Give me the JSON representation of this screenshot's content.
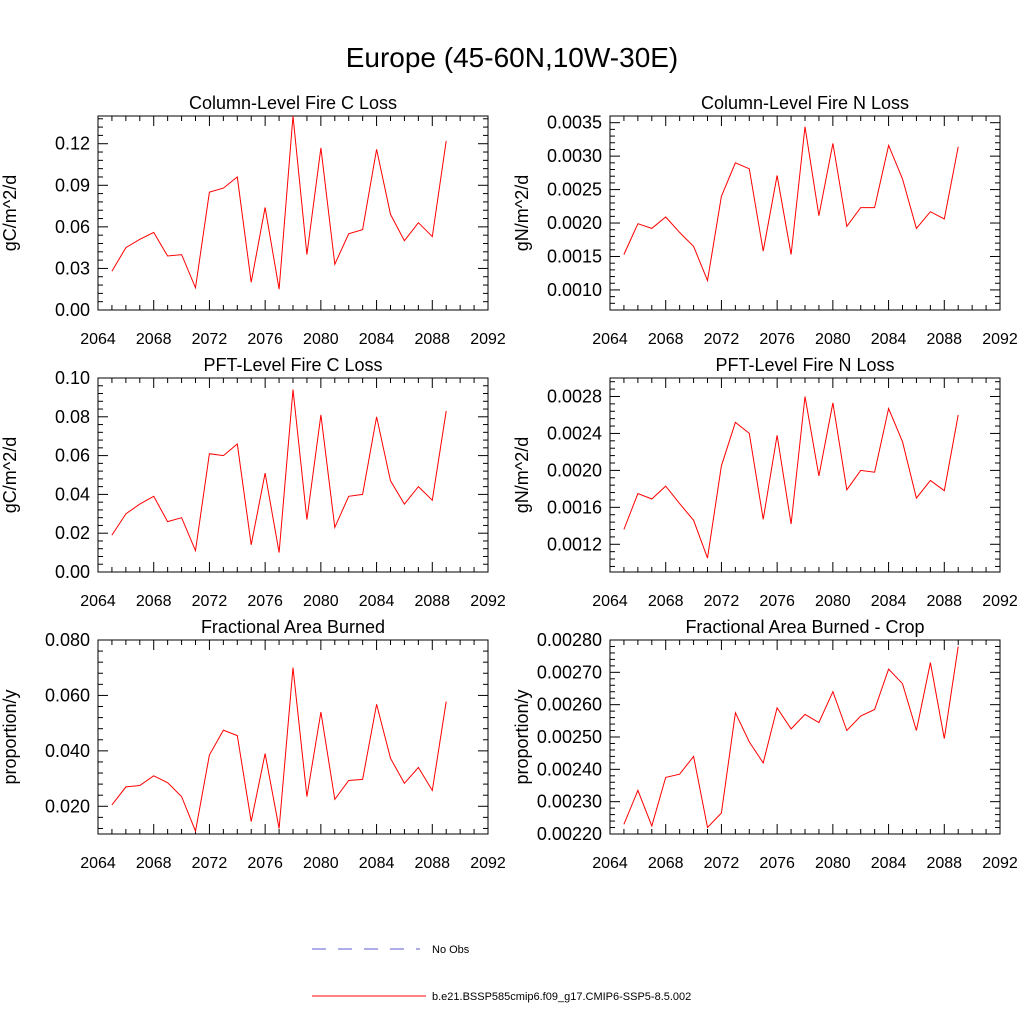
{
  "page_title": "Europe (45-60N,10W-30E)",
  "legend": {
    "obs_label": "No Obs",
    "model_label": "b.e21.BSSP585cmip6.f09_g17.CMIP6-SSP5-8.5.002",
    "obs_color": "#5b5bd6",
    "model_color": "#ff0000"
  },
  "chart_data": [
    {
      "type": "line",
      "title": "Column-Level Fire C Loss",
      "ylabel": "gC/m^2/d",
      "xlim": [
        2064,
        2092
      ],
      "ylim": [
        0,
        0.14
      ],
      "x_ticks": [
        "2064",
        "2068",
        "2072",
        "2076",
        "2080",
        "2084",
        "2088",
        "2092"
      ],
      "y_ticks": [
        "0.00",
        "0.03",
        "0.06",
        "0.09",
        "0.12"
      ],
      "x": [
        2065,
        2066,
        2067,
        2068,
        2069,
        2070,
        2071,
        2072,
        2073,
        2074,
        2075,
        2076,
        2077,
        2078,
        2079,
        2080,
        2081,
        2082,
        2083,
        2084,
        2085,
        2086,
        2087,
        2088,
        2089
      ],
      "series": [
        {
          "values": [
            0.028,
            0.045,
            0.051,
            0.056,
            0.039,
            0.04,
            0.016,
            0.085,
            0.088,
            0.096,
            0.02,
            0.074,
            0.015,
            0.14,
            0.04,
            0.117,
            0.033,
            0.055,
            0.058,
            0.116,
            0.069,
            0.05,
            0.063,
            0.053,
            0.122
          ]
        }
      ]
    },
    {
      "type": "line",
      "title": "Column-Level Fire N Loss",
      "ylabel": "gN/m^2/d",
      "xlim": [
        2064,
        2092
      ],
      "ylim": [
        0.0007,
        0.0036
      ],
      "x_ticks": [
        "2064",
        "2068",
        "2072",
        "2076",
        "2080",
        "2084",
        "2088",
        "2092"
      ],
      "y_ticks": [
        "0.0010",
        "0.0015",
        "0.0020",
        "0.0025",
        "0.0030",
        "0.0035"
      ],
      "x": [
        2065,
        2066,
        2067,
        2068,
        2069,
        2070,
        2071,
        2072,
        2073,
        2074,
        2075,
        2076,
        2077,
        2078,
        2079,
        2080,
        2081,
        2082,
        2083,
        2084,
        2085,
        2086,
        2087,
        2088,
        2089
      ],
      "series": [
        {
          "values": [
            0.00153,
            0.00199,
            0.00192,
            0.00209,
            0.00186,
            0.00165,
            0.00114,
            0.0024,
            0.0029,
            0.00281,
            0.00158,
            0.00271,
            0.00153,
            0.00344,
            0.00211,
            0.00319,
            0.00195,
            0.00223,
            0.00223,
            0.00316,
            0.00266,
            0.00192,
            0.00217,
            0.00206,
            0.00314
          ]
        }
      ]
    },
    {
      "type": "line",
      "title": "PFT-Level Fire C Loss",
      "ylabel": "gC/m^2/d",
      "xlim": [
        2064,
        2092
      ],
      "ylim": [
        0,
        0.1
      ],
      "x_ticks": [
        "2064",
        "2068",
        "2072",
        "2076",
        "2080",
        "2084",
        "2088",
        "2092"
      ],
      "y_ticks": [
        "0.00",
        "0.02",
        "0.04",
        "0.06",
        "0.08",
        "0.10"
      ],
      "x": [
        2065,
        2066,
        2067,
        2068,
        2069,
        2070,
        2071,
        2072,
        2073,
        2074,
        2075,
        2076,
        2077,
        2078,
        2079,
        2080,
        2081,
        2082,
        2083,
        2084,
        2085,
        2086,
        2087,
        2088,
        2089
      ],
      "series": [
        {
          "values": [
            0.019,
            0.03,
            0.035,
            0.039,
            0.026,
            0.028,
            0.011,
            0.061,
            0.06,
            0.066,
            0.014,
            0.051,
            0.01,
            0.094,
            0.027,
            0.081,
            0.023,
            0.039,
            0.04,
            0.08,
            0.047,
            0.035,
            0.044,
            0.037,
            0.083
          ]
        }
      ]
    },
    {
      "type": "line",
      "title": "PFT-Level Fire N Loss",
      "ylabel": "gN/m^2/d",
      "xlim": [
        2064,
        2092
      ],
      "ylim": [
        0.0009,
        0.003
      ],
      "x_ticks": [
        "2064",
        "2068",
        "2072",
        "2076",
        "2080",
        "2084",
        "2088",
        "2092"
      ],
      "y_ticks": [
        "0.0012",
        "0.0016",
        "0.0020",
        "0.0024",
        "0.0028"
      ],
      "x": [
        2065,
        2066,
        2067,
        2068,
        2069,
        2070,
        2071,
        2072,
        2073,
        2074,
        2075,
        2076,
        2077,
        2078,
        2079,
        2080,
        2081,
        2082,
        2083,
        2084,
        2085,
        2086,
        2087,
        2088,
        2089
      ],
      "series": [
        {
          "values": [
            0.00136,
            0.00175,
            0.00169,
            0.00183,
            0.00164,
            0.00146,
            0.00105,
            0.00205,
            0.00252,
            0.0024,
            0.00147,
            0.00238,
            0.00142,
            0.0028,
            0.00194,
            0.00273,
            0.00179,
            0.002,
            0.00198,
            0.00267,
            0.00231,
            0.0017,
            0.00189,
            0.00178,
            0.0026
          ]
        }
      ]
    },
    {
      "type": "line",
      "title": "Fractional Area Burned",
      "ylabel": "proportion/y",
      "xlim": [
        2064,
        2092
      ],
      "ylim": [
        0.01,
        0.08
      ],
      "x_ticks": [
        "2064",
        "2068",
        "2072",
        "2076",
        "2080",
        "2084",
        "2088",
        "2092"
      ],
      "y_ticks": [
        "0.020",
        "0.040",
        "0.060",
        "0.080"
      ],
      "x": [
        2065,
        2066,
        2067,
        2068,
        2069,
        2070,
        2071,
        2072,
        2073,
        2074,
        2075,
        2076,
        2077,
        2078,
        2079,
        2080,
        2081,
        2082,
        2083,
        2084,
        2085,
        2086,
        2087,
        2088,
        2089
      ],
      "series": [
        {
          "values": [
            0.0205,
            0.027,
            0.0275,
            0.031,
            0.0285,
            0.0235,
            0.011,
            0.0385,
            0.0475,
            0.0455,
            0.0145,
            0.039,
            0.012,
            0.07,
            0.0235,
            0.054,
            0.0225,
            0.0293,
            0.0297,
            0.0568,
            0.0373,
            0.0283,
            0.034,
            0.0257,
            0.0578
          ]
        }
      ]
    },
    {
      "type": "line",
      "title": "Fractional Area Burned - Crop",
      "ylabel": "proportion/y",
      "xlim": [
        2064,
        2092
      ],
      "ylim": [
        0.0022,
        0.0028
      ],
      "x_ticks": [
        "2064",
        "2068",
        "2072",
        "2076",
        "2080",
        "2084",
        "2088",
        "2092"
      ],
      "y_ticks": [
        "0.00220",
        "0.00230",
        "0.00240",
        "0.00250",
        "0.00260",
        "0.00270",
        "0.00280"
      ],
      "x": [
        2065,
        2066,
        2067,
        2068,
        2069,
        2070,
        2071,
        2072,
        2073,
        2074,
        2075,
        2076,
        2077,
        2078,
        2079,
        2080,
        2081,
        2082,
        2083,
        2084,
        2085,
        2086,
        2087,
        2088,
        2089
      ],
      "series": [
        {
          "values": [
            0.00223,
            0.002335,
            0.002225,
            0.002375,
            0.002385,
            0.00244,
            0.00222,
            0.002265,
            0.002575,
            0.002485,
            0.00242,
            0.00259,
            0.002525,
            0.00257,
            0.002545,
            0.00264,
            0.00252,
            0.002565,
            0.002585,
            0.00271,
            0.002665,
            0.00252,
            0.00273,
            0.002495,
            0.00278
          ]
        }
      ]
    }
  ]
}
